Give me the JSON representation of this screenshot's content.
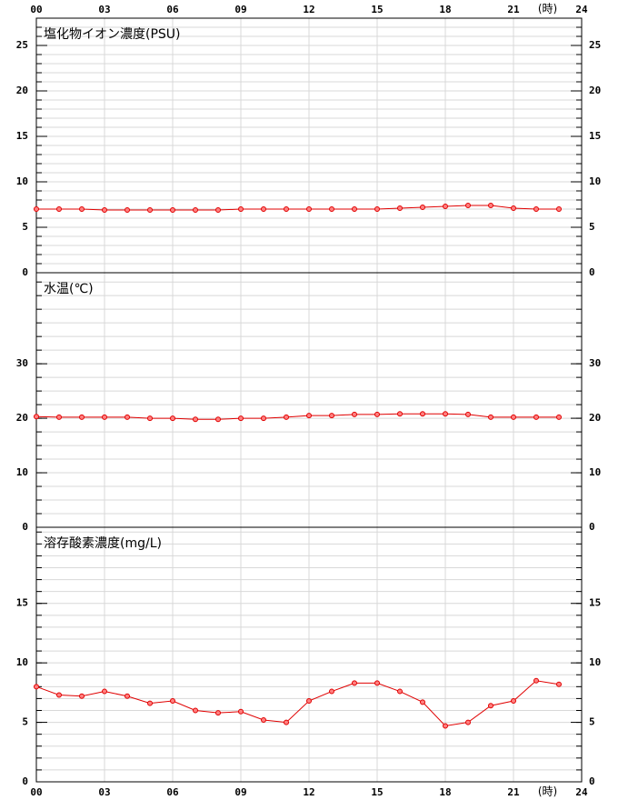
{
  "chart_data": [
    {
      "type": "line",
      "title": "塩化物イオン濃度(PSU)",
      "x": [
        0,
        1,
        2,
        3,
        4,
        5,
        6,
        7,
        8,
        9,
        10,
        11,
        12,
        13,
        14,
        15,
        16,
        17,
        18,
        19,
        20,
        21,
        22,
        23
      ],
      "series": [
        {
          "color": "#e00000",
          "values": [
            7.0,
            7.0,
            7.0,
            6.9,
            6.9,
            6.9,
            6.9,
            6.9,
            6.9,
            7.0,
            7.0,
            7.0,
            7.0,
            7.0,
            7.0,
            7.0,
            7.1,
            7.2,
            7.3,
            7.4,
            7.4,
            7.1,
            7.0,
            7.0
          ]
        }
      ],
      "xlim": [
        0,
        24
      ],
      "xticks": [
        {
          "value": 0,
          "label": "00"
        },
        {
          "value": 3,
          "label": "03"
        },
        {
          "value": 6,
          "label": "06"
        },
        {
          "value": 9,
          "label": "09"
        },
        12,
        15,
        18,
        21,
        24
      ],
      "x_unit": "(時)",
      "ylim": [
        0,
        28
      ],
      "yticks": [
        0,
        5,
        10,
        15,
        20,
        25
      ],
      "minor_step": 1,
      "grid": true
    },
    {
      "type": "line",
      "title": "水温(℃)",
      "x": [
        0,
        1,
        2,
        3,
        4,
        5,
        6,
        7,
        8,
        9,
        10,
        11,
        12,
        13,
        14,
        15,
        16,
        17,
        18,
        19,
        20,
        21,
        22,
        23
      ],
      "series": [
        {
          "color": "#e00000",
          "values": [
            20.3,
            20.2,
            20.2,
            20.2,
            20.2,
            20.0,
            20.0,
            19.8,
            19.8,
            20.0,
            20.0,
            20.2,
            20.5,
            20.5,
            20.7,
            20.7,
            20.8,
            20.8,
            20.8,
            20.7,
            20.2,
            20.2,
            20.2,
            20.2
          ]
        }
      ],
      "xlim": [
        0,
        24
      ],
      "xticks": [
        0,
        3,
        6,
        9,
        12,
        15,
        18,
        21,
        24
      ],
      "ylim": [
        0,
        46.7
      ],
      "yticks": [
        0,
        10,
        20,
        30
      ],
      "minor_step": 2.5,
      "grid": true
    },
    {
      "type": "line",
      "title": "溶存酸素濃度(mg/L)",
      "x": [
        0,
        1,
        2,
        3,
        4,
        5,
        6,
        7,
        8,
        9,
        10,
        11,
        12,
        13,
        14,
        15,
        16,
        17,
        18,
        19,
        20,
        21,
        22,
        23
      ],
      "series": [
        {
          "color": "#e00000",
          "values": [
            8.0,
            7.3,
            7.2,
            7.6,
            7.2,
            6.6,
            6.8,
            6.0,
            5.8,
            5.9,
            5.2,
            5.0,
            6.8,
            7.6,
            8.3,
            8.3,
            7.6,
            6.7,
            4.7,
            5.0,
            6.4,
            6.8,
            8.5,
            8.2
          ]
        }
      ],
      "xlim": [
        0,
        24
      ],
      "xticks": [
        {
          "value": 0,
          "label": "00"
        },
        {
          "value": 3,
          "label": "03"
        },
        {
          "value": 6,
          "label": "06"
        },
        {
          "value": 9,
          "label": "09"
        },
        12,
        15,
        18,
        21,
        24
      ],
      "x_unit": "(時)",
      "ylim": [
        0,
        21.4
      ],
      "yticks": [
        0,
        5,
        10,
        15
      ],
      "minor_step": 1,
      "grid": true
    }
  ]
}
